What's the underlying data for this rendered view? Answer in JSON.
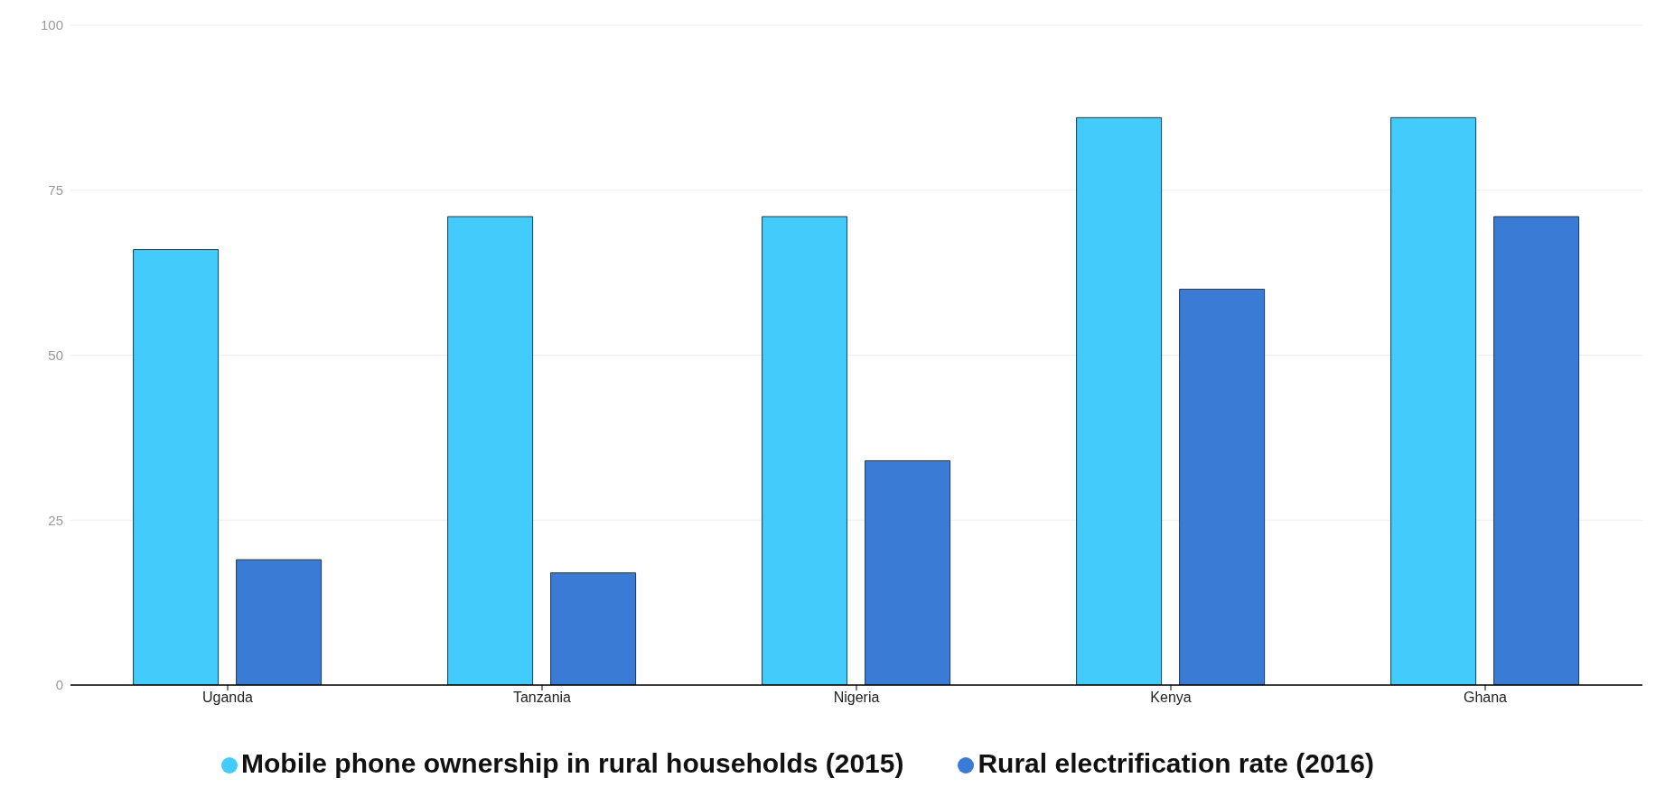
{
  "chart_data": {
    "type": "bar",
    "categories": [
      "Uganda",
      "Tanzania",
      "Nigeria",
      "Kenya",
      "Ghana"
    ],
    "series": [
      {
        "name": "Mobile phone ownership in rural households (2015)",
        "color": "#43ccfb",
        "values": [
          66,
          71,
          71,
          86,
          86
        ]
      },
      {
        "name": "Rural electrification rate (2016)",
        "color": "#3a7bd5",
        "values": [
          19,
          17,
          34,
          60,
          71
        ]
      }
    ],
    "ylim": [
      0,
      100
    ],
    "yticks": [
      0,
      25,
      50,
      75,
      100
    ],
    "grid": "y",
    "legend": "bottom"
  }
}
